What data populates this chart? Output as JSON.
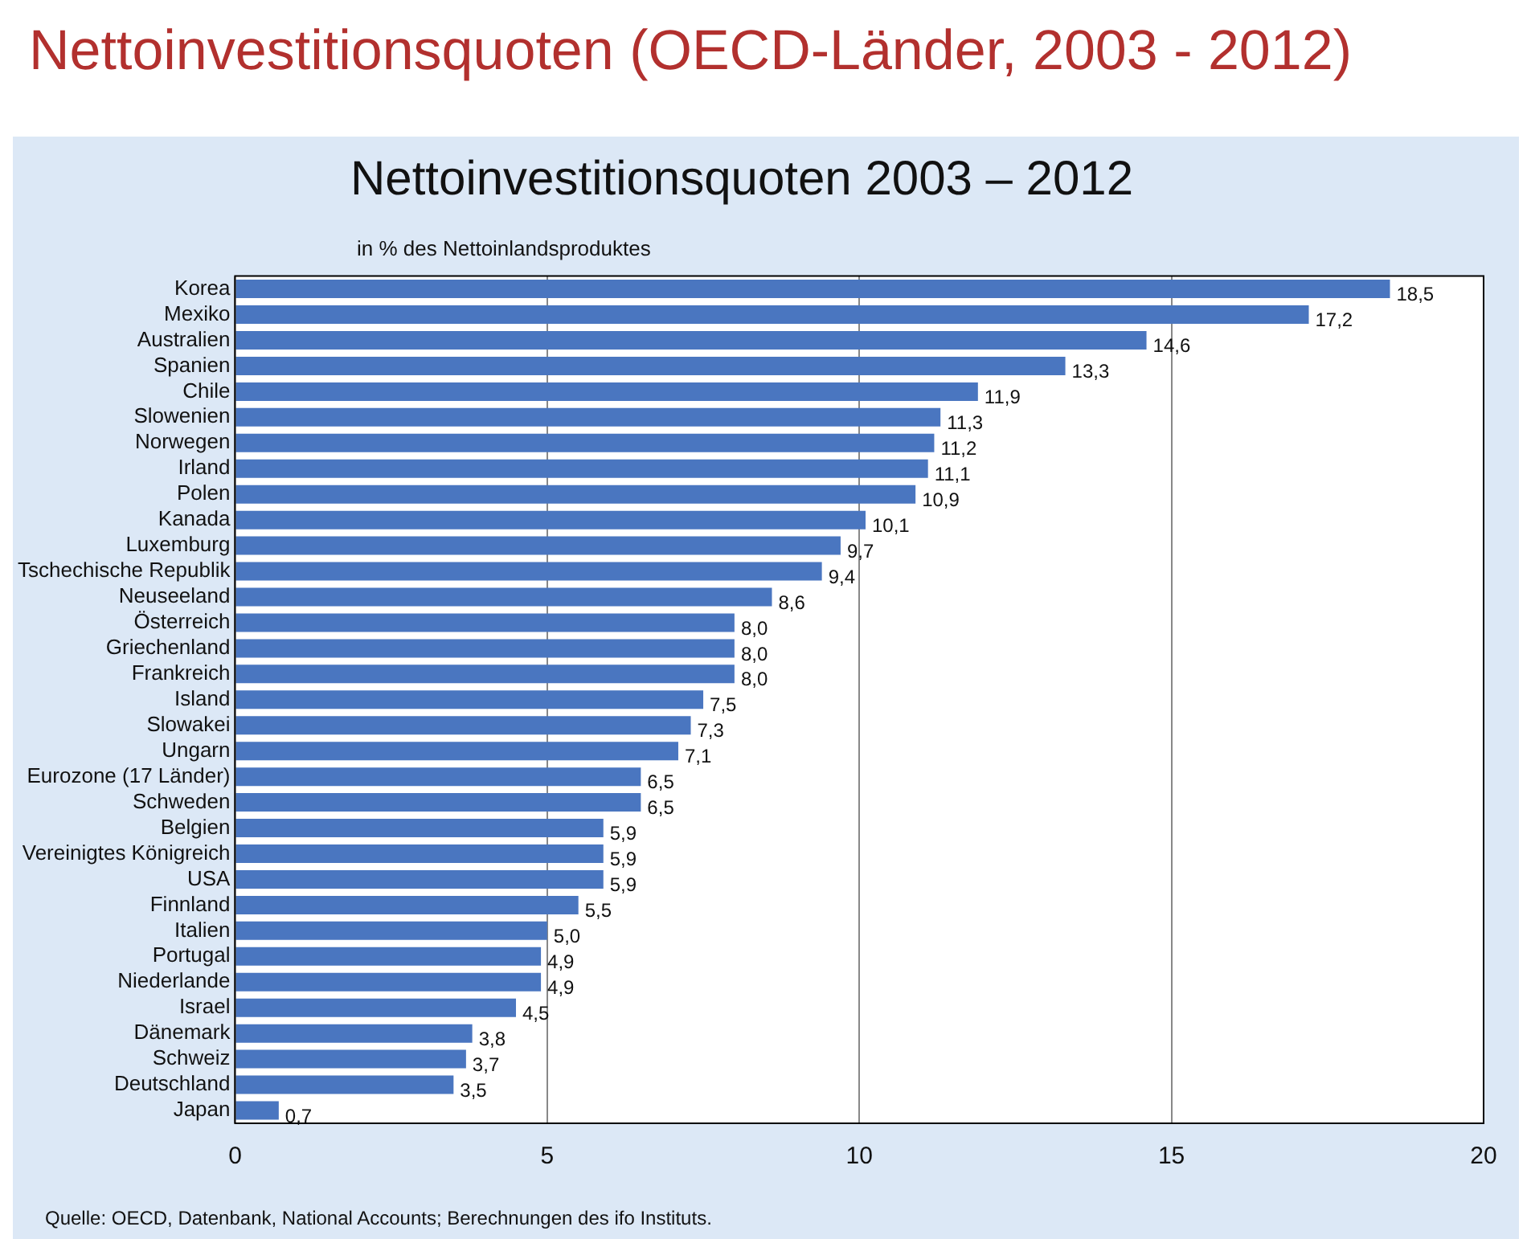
{
  "chart_data": {
    "type": "bar",
    "orientation": "horizontal",
    "title": "Nettoinvestitionsquoten (OECD-Länder, 2003 - 2012)",
    "subtitle": "Nettoinvestitionsquoten 2003 – 2012",
    "categories": [
      "Korea",
      "Mexiko",
      "Australien",
      "Spanien",
      "Chile",
      "Slowenien",
      "Norwegen",
      "Irland",
      "Polen",
      "Kanada",
      "Luxemburg",
      "Tschechische Republik",
      "Neuseeland",
      "Österreich",
      "Griechenland",
      "Frankreich",
      "Island",
      "Slowakei",
      "Ungarn",
      "Eurozone (17 Länder)",
      "Schweden",
      "Belgien",
      "Vereinigtes Königreich",
      "USA",
      "Finnland",
      "Italien",
      "Portugal",
      "Niederlande",
      "Israel",
      "Dänemark",
      "Schweiz",
      "Deutschland",
      "Japan"
    ],
    "values": [
      18.5,
      17.2,
      14.6,
      13.3,
      11.9,
      11.3,
      11.2,
      11.1,
      10.9,
      10.1,
      9.7,
      9.4,
      8.6,
      8.0,
      8.0,
      8.0,
      7.5,
      7.3,
      7.1,
      6.5,
      6.5,
      5.9,
      5.9,
      5.9,
      5.5,
      5.0,
      4.9,
      4.9,
      4.5,
      3.8,
      3.7,
      3.5,
      0.7
    ],
    "value_labels": [
      "18,5",
      "17,2",
      "14,6",
      "13,3",
      "11,9",
      "11,3",
      "11,2",
      "11,1",
      "10,9",
      "10,1",
      "9,7",
      "9,4",
      "8,6",
      "8,0",
      "8,0",
      "8,0",
      "7,5",
      "7,3",
      "7,1",
      "6,5",
      "6,5",
      "5,9",
      "5,9",
      "5,9",
      "5,5",
      "5,0",
      "4,9",
      "4,9",
      "4,5",
      "3,8",
      "3,7",
      "3,5",
      "0,7"
    ],
    "color": "#4a76c0",
    "xlim": [
      0,
      20
    ],
    "xticks": [
      0,
      5,
      10,
      15,
      20
    ],
    "grid": "x",
    "annotations": [
      "in % des Nettoinlandsproduktes",
      "Quelle: OECD, Datenbank, National Accounts; Berechnungen des ifo Instituts."
    ]
  }
}
